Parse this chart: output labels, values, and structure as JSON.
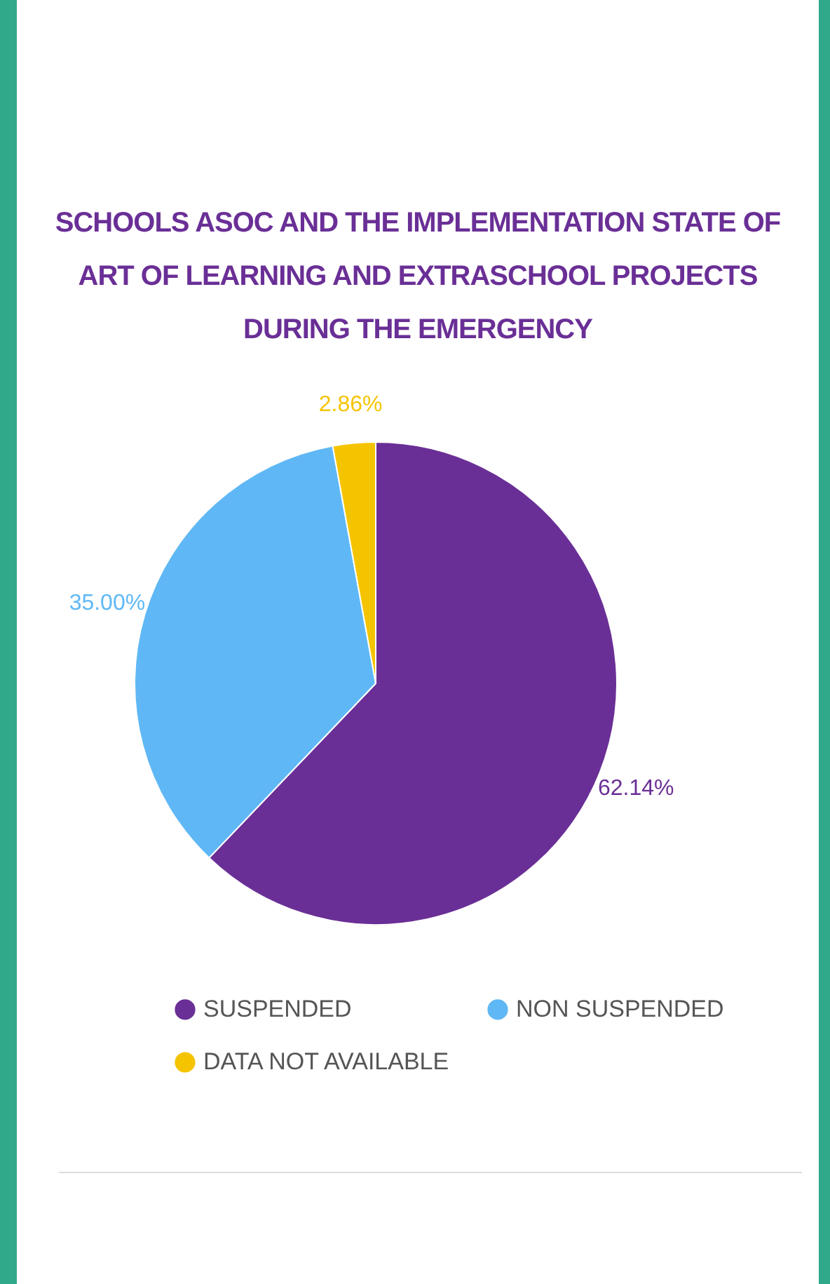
{
  "chart_data": {
    "type": "pie",
    "title": "SCHOOLS ASOC AND THE IMPLEMENTATION STATE OF ART OF LEARNING AND EXTRASCHOOL PROJECTS DURING THE EMERGENCY",
    "categories": [
      "SUSPENDED",
      "NON SUSPENDED",
      "DATA NOT AVAILABLE"
    ],
    "values": [
      62.14,
      35.0,
      2.86
    ],
    "value_labels": [
      "62.14%",
      "35.00%",
      "2.86%"
    ],
    "colors": [
      "#6a2f96",
      "#5fb8f5",
      "#f5c400"
    ],
    "legend": "bottom"
  }
}
